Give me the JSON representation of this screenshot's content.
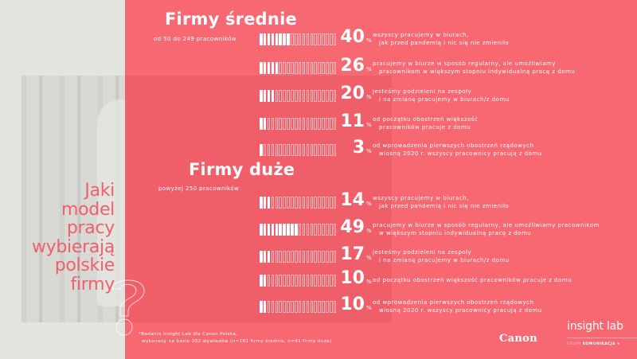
{
  "colors": {
    "accent_red": "#fa5f69",
    "background_gray": "#e3e3df",
    "question_text": "#f0606a",
    "text_white": "#ffffff"
  },
  "question": {
    "lines": [
      "Jaki",
      "model",
      "pracy",
      "wybierają",
      "polskie",
      "firmy"
    ]
  },
  "sections": [
    {
      "title": "Firmy średnie",
      "subtitle": "od 50 do 249 pracowników",
      "rows": [
        {
          "value": "40",
          "percent_sign": "%",
          "filled": 8,
          "line1": "wszyscy pracujemy w biurach,",
          "line2": "jak przed pandemią i nic się nie zmieniło"
        },
        {
          "value": "26",
          "percent_sign": "%",
          "filled": 5,
          "line1": "pracujemy w biurze w sposób regularny, ale umożliwiamy",
          "line2": "pracownikom w większym stopniu indywidualną pracę z domu"
        },
        {
          "value": "20",
          "percent_sign": "%",
          "filled": 4,
          "line1": "jesteśmy podzieleni na zespoły",
          "line2": "i na zmianę pracujemy w biurach/z domu"
        },
        {
          "value": "11",
          "percent_sign": "%",
          "filled": 2,
          "line1": "od początku obostrzeń większość",
          "line2": "pracowników pracuje z domu"
        },
        {
          "value": "3",
          "percent_sign": "%",
          "filled": 1,
          "line1": "od wprowadzenia pierwszych obostrzeń rządowych",
          "line2": "wiosną 2020 r. wszyscy pracownicy pracują z domu"
        }
      ]
    },
    {
      "title": "Firmy duże",
      "subtitle": "powyżej 250 pracowników",
      "rows": [
        {
          "value": "14",
          "percent_sign": "%",
          "filled": 3,
          "line1": "wszyscy pracujemy w biurach,",
          "line2": "jak przed pandemią i nic się nie zmieniło"
        },
        {
          "value": "49",
          "percent_sign": "%",
          "filled": 10,
          "line1": "pracujemy w biurze w sposób regularny, ale umożliwiamy pracownikom",
          "line2": "w większym stopniu indywidualną pracę z domu"
        },
        {
          "value": "17",
          "percent_sign": "%",
          "filled": 3,
          "line1": "jesteśmy podzieleni na zespoły",
          "line2": "i na zmianę pracujemy w biurach/z domu"
        },
        {
          "value": "10",
          "percent_sign": "%",
          "filled": 2,
          "line1": "od początku obostrzeń większość pracowników pracuje z domu",
          "line2": ""
        },
        {
          "value": "10",
          "percent_sign": "%",
          "filled": 2,
          "line1": "od wprowadzenia pierwszych obostrzeń rządowych",
          "line2": "wiosną 2020 r. wszyscy pracownicy pracują z domu"
        }
      ]
    }
  ],
  "footnote": {
    "line1": "*Badanie Insight Lab dla Canon Polska,",
    "line2": "wykonany na bazie 202 wywiadów (n=161 firmy średnie, n=41 firmy duże)"
  },
  "logos": {
    "canon": "Canon",
    "insight_lab": "insight lab",
    "grupa_prefix": "GRUPA",
    "grupa_name": "KOMUNIKACJA +"
  },
  "chart_data": {
    "type": "bar",
    "title": "Jaki model pracy wybierają polskie firmy?",
    "orientation": "horizontal",
    "segments_per_bar": 20,
    "segment_value": 5,
    "categories": [
      "wszyscy pracujemy w biurach, jak przed pandemią i nic się nie zmieniło",
      "pracujemy w biurze w sposób regularny, ale umożliwiamy pracownikom w większym stopniu indywidualną pracę z domu",
      "jesteśmy podzieleni na zespoły i na zmianę pracujemy w biurach/z domu",
      "od początku obostrzeń większość pracowników pracuje z domu",
      "od wprowadzenia pierwszych obostrzeń rządowych wiosną 2020 r. wszyscy pracownicy pracują z domu"
    ],
    "series": [
      {
        "name": "Firmy średnie (od 50 do 249 pracowników)",
        "values": [
          40,
          26,
          20,
          11,
          3
        ]
      },
      {
        "name": "Firmy duże (powyżej 250 pracowników)",
        "values": [
          14,
          49,
          17,
          10,
          10
        ]
      }
    ],
    "unit": "%",
    "ylim": [
      0,
      100
    ],
    "grid": false,
    "legend": "section titles above each group"
  }
}
